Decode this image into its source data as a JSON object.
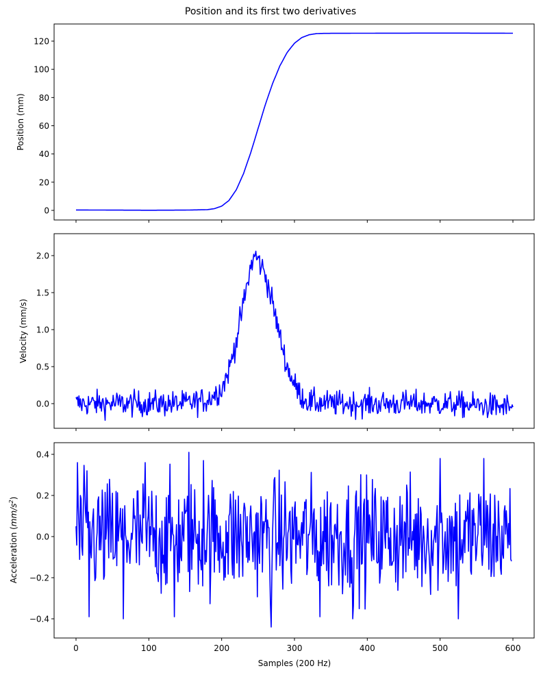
{
  "figure": {
    "title": "Position and its first two derivatives",
    "line_color": "#0000ff",
    "xlabel": "Samples (200 Hz)",
    "x_ticks": [
      "0",
      "100",
      "200",
      "300",
      "400",
      "500",
      "600"
    ]
  },
  "panels": [
    {
      "ylabel": "Position (mm)",
      "y_ticks": [
        "0",
        "20",
        "40",
        "60",
        "80",
        "100",
        "120"
      ]
    },
    {
      "ylabel": "Velocity (mm/s)",
      "y_ticks": [
        "0.0",
        "0.5",
        "1.0",
        "1.5",
        "2.0"
      ]
    },
    {
      "ylabel_prefix": "Acceleration (",
      "ylabel_unit_base": "mm/s",
      "ylabel_unit_exp": "2",
      "ylabel_suffix": ")",
      "y_ticks": [
        "−0.4",
        "−0.2",
        "0.0",
        "0.2",
        "0.4"
      ]
    }
  ],
  "chart_data": [
    {
      "type": "line",
      "title": "Position and its first two derivatives",
      "xlabel": "",
      "ylabel": "Position (mm)",
      "xlim": [
        -30,
        630
      ],
      "ylim": [
        -6,
        132
      ],
      "grid": false,
      "series": [
        {
          "name": "Position",
          "color": "#0000ff",
          "x": [
            0,
            50,
            100,
            150,
            180,
            190,
            200,
            210,
            220,
            230,
            240,
            250,
            260,
            270,
            280,
            290,
            300,
            310,
            320,
            330,
            340,
            400,
            500,
            600
          ],
          "values": [
            0.3,
            0.2,
            0.1,
            0.2,
            0.5,
            1.2,
            3.0,
            7.0,
            14.5,
            26.0,
            41.0,
            58.0,
            75.0,
            90.0,
            102.5,
            112.0,
            118.5,
            122.5,
            124.5,
            125.3,
            125.5,
            125.6,
            125.7,
            125.6
          ]
        }
      ]
    },
    {
      "type": "line",
      "xlabel": "",
      "ylabel": "Velocity (mm/s)",
      "xlim": [
        -30,
        630
      ],
      "ylim": [
        -0.28,
        2.3
      ],
      "grid": false,
      "series": [
        {
          "name": "Velocity",
          "color": "#0000ff",
          "note": "noisy gaussian bump, noise amplitude ~±0.2, peak ~2.18 at sample ~245",
          "x": [
            0,
            50,
            100,
            150,
            180,
            200,
            210,
            220,
            230,
            240,
            245,
            250,
            260,
            270,
            280,
            290,
            300,
            310,
            320,
            350,
            400,
            500,
            600
          ],
          "values": [
            0.0,
            0.0,
            0.0,
            0.0,
            0.05,
            0.2,
            0.45,
            0.85,
            1.35,
            1.85,
            2.0,
            1.95,
            1.75,
            1.35,
            0.9,
            0.5,
            0.25,
            0.1,
            0.02,
            0.0,
            0.0,
            0.0,
            -0.05
          ]
        }
      ]
    },
    {
      "type": "line",
      "xlabel": "Samples (200 Hz)",
      "ylabel": "Acceleration (mm/s²)",
      "xlim": [
        -30,
        630
      ],
      "ylim": [
        -0.48,
        0.45
      ],
      "grid": false,
      "series": [
        {
          "name": "Acceleration",
          "color": "#0000ff",
          "note": "white noise centred on 0, range ~[-0.44, 0.41]; max 0.41 near sample 155, min -0.44 near sample 268",
          "x": [
            0,
            2,
            15,
            18,
            65,
            95,
            135,
            155,
            175,
            268,
            335,
            380,
            500,
            525,
            560,
            598
          ],
          "values": [
            0.05,
            0.36,
            0.32,
            -0.39,
            -0.4,
            0.36,
            -0.39,
            0.41,
            0.37,
            -0.44,
            -0.39,
            -0.4,
            0.38,
            -0.4,
            0.38,
            -0.12
          ]
        }
      ]
    }
  ]
}
